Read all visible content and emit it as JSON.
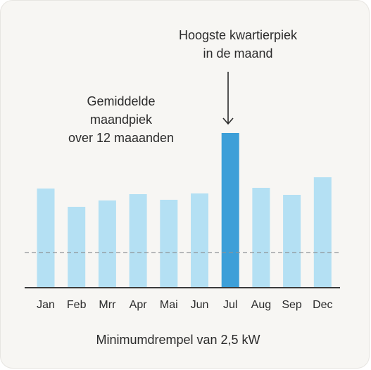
{
  "chart_data": {
    "type": "bar",
    "categories": [
      "Jan",
      "Feb",
      "Mrr",
      "Apr",
      "Mai",
      "Jun",
      "Jul",
      "Aug",
      "Sep",
      "Dec"
    ],
    "values": [
      141,
      115,
      124,
      133,
      125,
      134,
      220,
      142,
      132,
      157
    ],
    "highlight_index": 6,
    "threshold": 50,
    "colors": {
      "bar": "#b4e0f3",
      "highlight": "#3d9fd8",
      "axis": "#3a3a3a",
      "threshold_line": "#8e9396"
    },
    "annotations": {
      "peak_line1": "Hoogste kwartierpiek",
      "peak_line2": "in de maand",
      "avg_line1": "Gemiddelde",
      "avg_line2": "maandpiek",
      "avg_line3": "over 12 maaanden"
    },
    "caption": "Minimumdrempel van 2,5 kW"
  }
}
